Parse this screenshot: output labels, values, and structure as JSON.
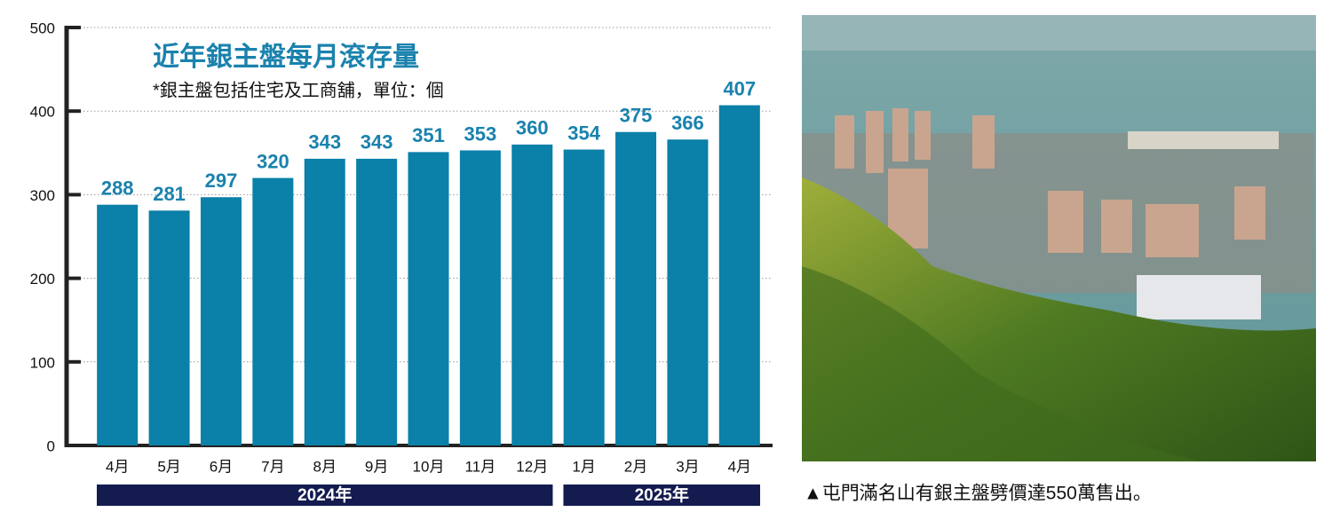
{
  "chart_data": {
    "type": "bar",
    "title": "近年銀主盤每月滾存量",
    "subtitle": "*銀主盤包括住宅及工商舖，單位：個",
    "groups": [
      {
        "name": "2024年",
        "categories": [
          "4月",
          "5月",
          "6月",
          "7月",
          "8月",
          "9月",
          "10月",
          "11月",
          "12月"
        ],
        "values": [
          288,
          281,
          297,
          320,
          343,
          343,
          351,
          353,
          360
        ]
      },
      {
        "name": "2025年",
        "categories": [
          "1月",
          "2月",
          "3月",
          "4月"
        ],
        "values": [
          354,
          375,
          366,
          407
        ]
      }
    ],
    "color": "#0b80a8",
    "label_color": "#1a82ad",
    "group_color": "#141b4f",
    "ylim": [
      0,
      500
    ],
    "yticks": [
      0,
      100,
      200,
      300,
      400,
      500
    ],
    "grid": true
  },
  "photo": {
    "caption": "▲屯門滿名山有銀主盤劈價達550萬售出。"
  }
}
